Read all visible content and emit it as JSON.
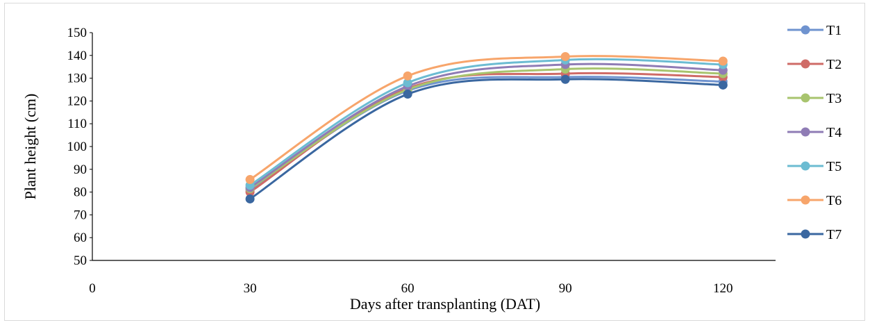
{
  "chart_data": {
    "type": "line",
    "title": "",
    "xlabel": "Days after transplanting (DAT)",
    "ylabel": "Plant height (cm)",
    "xlim": [
      0,
      130
    ],
    "ylim": [
      50,
      150
    ],
    "xticks": [
      0,
      30,
      60,
      90,
      120
    ],
    "yticks": [
      50,
      60,
      70,
      80,
      90,
      100,
      110,
      120,
      130,
      140,
      150
    ],
    "smooth": true,
    "grid": false,
    "legend_position": "right",
    "x": [
      30,
      60,
      90,
      120
    ],
    "series": [
      {
        "name": "T1",
        "color": "#6f93cf",
        "values": [
          81,
          124.5,
          130.5,
          128.5
        ]
      },
      {
        "name": "T2",
        "color": "#cf6b67",
        "values": [
          80,
          125.5,
          132,
          130.5
        ]
      },
      {
        "name": "T3",
        "color": "#a8c46e",
        "values": [
          81.5,
          125,
          134,
          132
        ]
      },
      {
        "name": "T4",
        "color": "#8f7cb5",
        "values": [
          82,
          126.5,
          136,
          133.5
        ]
      },
      {
        "name": "T5",
        "color": "#6cbcd2",
        "values": [
          83,
          128,
          138,
          136
        ]
      },
      {
        "name": "T6",
        "color": "#f7a56b",
        "values": [
          85.5,
          131,
          139.5,
          137.5
        ]
      },
      {
        "name": "T7",
        "color": "#3a67a0",
        "values": [
          77,
          123,
          129.5,
          127
        ]
      }
    ]
  }
}
